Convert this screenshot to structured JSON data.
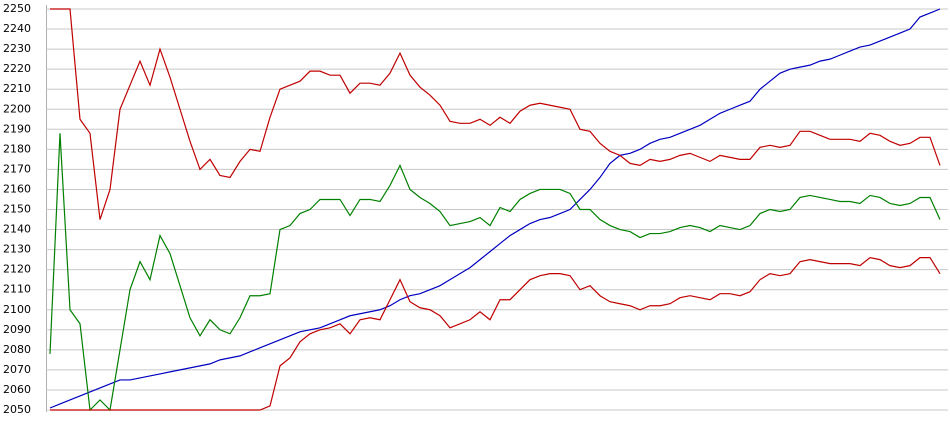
{
  "chart_data": {
    "type": "line",
    "ylim": [
      2050,
      2250
    ],
    "yticks": [
      2050,
      2060,
      2070,
      2080,
      2090,
      2100,
      2110,
      2120,
      2130,
      2140,
      2150,
      2160,
      2170,
      2180,
      2190,
      2200,
      2210,
      2220,
      2230,
      2240,
      2250
    ],
    "grid": true,
    "series": [
      {
        "color": "#0000c0",
        "values": [
          2051,
          2053,
          2055,
          2057,
          2059,
          2061,
          2063,
          2065,
          2065,
          2066,
          2067,
          2068,
          2069,
          2070,
          2071,
          2072,
          2073,
          2075,
          2076,
          2077,
          2079,
          2081,
          2083,
          2085,
          2087,
          2089,
          2090,
          2091,
          2093,
          2095,
          2097,
          2098,
          2099,
          2100,
          2102,
          2105,
          2107,
          2108,
          2110,
          2112,
          2115,
          2118,
          2121,
          2125,
          2129,
          2133,
          2137,
          2140,
          2143,
          2145,
          2146,
          2148,
          2150,
          2155,
          2160,
          2166,
          2173,
          2177,
          2178,
          2180,
          2183,
          2185,
          2186,
          2188,
          2190,
          2192,
          2195,
          2198,
          2200,
          2202,
          2204,
          2210,
          2214,
          2218,
          2220,
          2221,
          2222,
          2224,
          2225,
          2227,
          2229,
          2231,
          2232,
          2234,
          2236,
          2238,
          2240,
          2246,
          2248,
          2250
        ]
      },
      {
        "color": "#c00000",
        "values": [
          2250,
          2250,
          2250,
          2195,
          2188,
          2145,
          2160,
          2200,
          2212,
          2224,
          2212,
          2230,
          2216,
          2200,
          2184,
          2170,
          2175,
          2167,
          2166,
          2174,
          2180,
          2179,
          2196,
          2210,
          2212,
          2214,
          2219,
          2219,
          2217,
          2217,
          2208,
          2213,
          2213,
          2212,
          2218,
          2228,
          2217,
          2211,
          2207,
          2202,
          2194,
          2193,
          2193,
          2195,
          2192,
          2196,
          2193,
          2199,
          2202,
          2203,
          2202,
          2201,
          2200,
          2190,
          2189,
          2183,
          2179,
          2177,
          2173,
          2172,
          2175,
          2174,
          2175,
          2177,
          2178,
          2176,
          2174,
          2177,
          2176,
          2175,
          2175,
          2181,
          2182,
          2181,
          2182,
          2189,
          2189,
          2187,
          2185,
          2185,
          2185,
          2184,
          2188,
          2187,
          2184,
          2182,
          2183,
          2186,
          2186,
          2172
        ]
      },
      {
        "color": "#008000",
        "values": [
          2078,
          2188,
          2100,
          2093,
          2050,
          2055,
          2050,
          2080,
          2110,
          2124,
          2115,
          2137,
          2128,
          2112,
          2096,
          2087,
          2095,
          2090,
          2088,
          2096,
          2107,
          2107,
          2108,
          2140,
          2142,
          2148,
          2150,
          2155,
          2155,
          2155,
          2147,
          2155,
          2155,
          2154,
          2162,
          2172,
          2160,
          2156,
          2153,
          2149,
          2142,
          2143,
          2144,
          2146,
          2142,
          2151,
          2149,
          2155,
          2158,
          2160,
          2160,
          2160,
          2158,
          2150,
          2150,
          2145,
          2142,
          2140,
          2139,
          2136,
          2138,
          2138,
          2139,
          2141,
          2142,
          2141,
          2139,
          2142,
          2141,
          2140,
          2142,
          2148,
          2150,
          2149,
          2150,
          2156,
          2157,
          2156,
          2155,
          2154,
          2154,
          2153,
          2157,
          2156,
          2153,
          2152,
          2153,
          2156,
          2156,
          2145
        ]
      },
      {
        "color": "#c00000",
        "values": [
          2050,
          2050,
          2050,
          2050,
          2050,
          2050,
          2050,
          2050,
          2050,
          2050,
          2050,
          2050,
          2050,
          2050,
          2050,
          2050,
          2050,
          2050,
          2050,
          2050,
          2050,
          2050,
          2052,
          2072,
          2076,
          2084,
          2088,
          2090,
          2091,
          2093,
          2088,
          2095,
          2096,
          2095,
          2105,
          2115,
          2104,
          2101,
          2100,
          2097,
          2091,
          2093,
          2095,
          2099,
          2095,
          2105,
          2105,
          2110,
          2115,
          2117,
          2118,
          2118,
          2117,
          2110,
          2112,
          2107,
          2104,
          2103,
          2102,
          2100,
          2102,
          2102,
          2103,
          2106,
          2107,
          2106,
          2105,
          2108,
          2108,
          2107,
          2109,
          2115,
          2118,
          2117,
          2118,
          2124,
          2125,
          2124,
          2123,
          2123,
          2123,
          2122,
          2126,
          2125,
          2122,
          2121,
          2122,
          2126,
          2126,
          2118
        ]
      }
    ]
  }
}
